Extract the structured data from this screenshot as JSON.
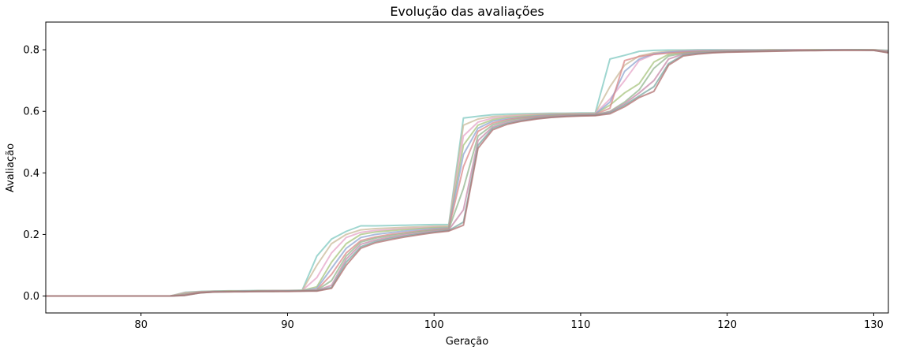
{
  "chart_data": {
    "type": "line",
    "title": "Evolução das avaliações",
    "xlabel": "Geração",
    "ylabel": "Avaliação",
    "xlim": [
      73.5,
      131
    ],
    "ylim": [
      -0.055,
      0.89
    ],
    "xticks": [
      80,
      90,
      100,
      110,
      120,
      130
    ],
    "yticks": [
      0.0,
      0.2,
      0.4,
      0.6,
      0.8
    ],
    "xtick_labels": [
      "80",
      "90",
      "100",
      "110",
      "120",
      "130"
    ],
    "ytick_labels": [
      "0.0",
      "0.2",
      "0.4",
      "0.6",
      "0.8"
    ],
    "grid": false,
    "legend": "none",
    "x": [
      73,
      74,
      75,
      76,
      77,
      78,
      79,
      80,
      81,
      82,
      83,
      84,
      85,
      86,
      87,
      88,
      89,
      90,
      91,
      92,
      93,
      94,
      95,
      96,
      97,
      98,
      99,
      100,
      101,
      102,
      103,
      104,
      105,
      106,
      107,
      108,
      109,
      110,
      111,
      112,
      113,
      114,
      115,
      116,
      117,
      118,
      119,
      120,
      121,
      122,
      123,
      124,
      125,
      126,
      127,
      128,
      129,
      130,
      131
    ],
    "series": [
      {
        "color": "#7fc8c0",
        "values": [
          0,
          0,
          0,
          0,
          0,
          0,
          0,
          0,
          0,
          0,
          0.012,
          0.015,
          0.016,
          0.017,
          0.017,
          0.018,
          0.018,
          0.018,
          0.019,
          0.13,
          0.185,
          0.21,
          0.228,
          0.228,
          0.229,
          0.23,
          0.231,
          0.232,
          0.232,
          0.578,
          0.584,
          0.589,
          0.591,
          0.592,
          0.593,
          0.594,
          0.594,
          0.595,
          0.595,
          0.77,
          0.782,
          0.795,
          0.798,
          0.799,
          0.799,
          0.8,
          0.8,
          0.8,
          0.8,
          0.8,
          0.8,
          0.8,
          0.8,
          0.8,
          0.8,
          0.8,
          0.8,
          0.8,
          0.798
        ]
      },
      {
        "color": "#c9b99a",
        "values": [
          0,
          0,
          0,
          0,
          0,
          0,
          0,
          0,
          0,
          0,
          0.011,
          0.014,
          0.016,
          0.016,
          0.017,
          0.017,
          0.018,
          0.018,
          0.018,
          0.1,
          0.17,
          0.2,
          0.215,
          0.219,
          0.221,
          0.223,
          0.225,
          0.227,
          0.228,
          0.555,
          0.575,
          0.583,
          0.586,
          0.589,
          0.591,
          0.592,
          0.593,
          0.593,
          0.594,
          0.68,
          0.75,
          0.78,
          0.79,
          0.795,
          0.797,
          0.798,
          0.798,
          0.799,
          0.799,
          0.799,
          0.8,
          0.8,
          0.8,
          0.8,
          0.8,
          0.8,
          0.8,
          0.8,
          0.797
        ]
      },
      {
        "color": "#e5a5c8",
        "values": [
          0,
          0,
          0,
          0,
          0,
          0,
          0,
          0,
          0,
          0,
          0.01,
          0.014,
          0.015,
          0.016,
          0.016,
          0.017,
          0.017,
          0.017,
          0.018,
          0.06,
          0.14,
          0.19,
          0.207,
          0.213,
          0.216,
          0.219,
          0.221,
          0.224,
          0.225,
          0.52,
          0.565,
          0.578,
          0.583,
          0.586,
          0.589,
          0.591,
          0.592,
          0.592,
          0.593,
          0.64,
          0.7,
          0.765,
          0.785,
          0.792,
          0.795,
          0.797,
          0.798,
          0.798,
          0.799,
          0.799,
          0.799,
          0.8,
          0.8,
          0.8,
          0.8,
          0.8,
          0.8,
          0.8,
          0.796
        ]
      },
      {
        "color": "#a7c47e",
        "values": [
          0,
          0,
          0,
          0,
          0,
          0,
          0,
          0,
          0,
          0,
          0.008,
          0.013,
          0.015,
          0.016,
          0.016,
          0.017,
          0.017,
          0.017,
          0.018,
          0.03,
          0.11,
          0.17,
          0.2,
          0.208,
          0.212,
          0.216,
          0.219,
          0.222,
          0.224,
          0.49,
          0.555,
          0.573,
          0.58,
          0.584,
          0.587,
          0.59,
          0.591,
          0.591,
          0.592,
          0.62,
          0.66,
          0.69,
          0.76,
          0.785,
          0.791,
          0.795,
          0.797,
          0.797,
          0.798,
          0.798,
          0.799,
          0.799,
          0.799,
          0.8,
          0.8,
          0.8,
          0.8,
          0.8,
          0.795
        ]
      },
      {
        "color": "#8fa6d0",
        "values": [
          0,
          0,
          0,
          0,
          0,
          0,
          0,
          0,
          0,
          0,
          0.006,
          0.012,
          0.015,
          0.015,
          0.016,
          0.016,
          0.017,
          0.017,
          0.017,
          0.025,
          0.09,
          0.155,
          0.19,
          0.2,
          0.206,
          0.211,
          0.215,
          0.219,
          0.221,
          0.46,
          0.545,
          0.568,
          0.576,
          0.581,
          0.585,
          0.588,
          0.589,
          0.59,
          0.591,
          0.63,
          0.73,
          0.77,
          0.787,
          0.792,
          0.795,
          0.796,
          0.797,
          0.797,
          0.798,
          0.798,
          0.798,
          0.799,
          0.799,
          0.799,
          0.8,
          0.8,
          0.8,
          0.799,
          0.795
        ]
      },
      {
        "color": "#d98a8a",
        "values": [
          0,
          0,
          0,
          0,
          0,
          0,
          0,
          0,
          0,
          0,
          0.005,
          0.012,
          0.014,
          0.015,
          0.015,
          0.016,
          0.016,
          0.017,
          0.017,
          0.02,
          0.07,
          0.14,
          0.18,
          0.192,
          0.2,
          0.206,
          0.211,
          0.216,
          0.219,
          0.42,
          0.535,
          0.562,
          0.573,
          0.579,
          0.583,
          0.586,
          0.588,
          0.589,
          0.59,
          0.61,
          0.765,
          0.778,
          0.785,
          0.789,
          0.792,
          0.794,
          0.795,
          0.796,
          0.797,
          0.797,
          0.798,
          0.798,
          0.799,
          0.799,
          0.799,
          0.8,
          0.8,
          0.799,
          0.794
        ]
      },
      {
        "color": "#93b58f",
        "values": [
          0,
          0,
          0,
          0,
          0,
          0,
          0,
          0,
          0,
          0,
          0.004,
          0.011,
          0.014,
          0.015,
          0.015,
          0.016,
          0.016,
          0.016,
          0.017,
          0.019,
          0.05,
          0.13,
          0.175,
          0.188,
          0.196,
          0.203,
          0.209,
          0.214,
          0.217,
          0.35,
          0.52,
          0.556,
          0.569,
          0.576,
          0.581,
          0.585,
          0.587,
          0.588,
          0.589,
          0.6,
          0.63,
          0.67,
          0.74,
          0.78,
          0.788,
          0.792,
          0.794,
          0.795,
          0.796,
          0.797,
          0.797,
          0.798,
          0.798,
          0.799,
          0.799,
          0.799,
          0.8,
          0.799,
          0.793
        ]
      },
      {
        "color": "#c58aa8",
        "values": [
          0,
          0,
          0,
          0,
          0,
          0,
          0,
          0,
          0,
          0,
          0.003,
          0.011,
          0.014,
          0.014,
          0.015,
          0.015,
          0.016,
          0.016,
          0.016,
          0.018,
          0.035,
          0.12,
          0.168,
          0.182,
          0.191,
          0.199,
          0.205,
          0.211,
          0.215,
          0.28,
          0.505,
          0.55,
          0.565,
          0.573,
          0.579,
          0.583,
          0.586,
          0.587,
          0.588,
          0.598,
          0.625,
          0.66,
          0.7,
          0.77,
          0.786,
          0.79,
          0.792,
          0.794,
          0.795,
          0.796,
          0.797,
          0.797,
          0.798,
          0.798,
          0.799,
          0.799,
          0.799,
          0.799,
          0.792
        ]
      },
      {
        "color": "#7aa7a0",
        "values": [
          0,
          0,
          0,
          0,
          0,
          0,
          0,
          0,
          0,
          0,
          0.002,
          0.01,
          0.013,
          0.014,
          0.015,
          0.015,
          0.015,
          0.016,
          0.016,
          0.017,
          0.028,
          0.11,
          0.16,
          0.177,
          0.187,
          0.195,
          0.202,
          0.208,
          0.213,
          0.24,
          0.49,
          0.545,
          0.561,
          0.57,
          0.577,
          0.581,
          0.584,
          0.586,
          0.587,
          0.595,
          0.62,
          0.65,
          0.68,
          0.755,
          0.783,
          0.788,
          0.791,
          0.793,
          0.794,
          0.795,
          0.796,
          0.797,
          0.797,
          0.798,
          0.798,
          0.799,
          0.799,
          0.798,
          0.791
        ]
      },
      {
        "color": "#b07070",
        "values": [
          0,
          0,
          0,
          0,
          0,
          0,
          0,
          0,
          0,
          0,
          0.002,
          0.01,
          0.013,
          0.014,
          0.014,
          0.015,
          0.015,
          0.015,
          0.016,
          0.016,
          0.025,
          0.1,
          0.155,
          0.173,
          0.183,
          0.192,
          0.199,
          0.206,
          0.211,
          0.23,
          0.48,
          0.54,
          0.558,
          0.568,
          0.575,
          0.58,
          0.583,
          0.585,
          0.586,
          0.592,
          0.615,
          0.645,
          0.665,
          0.75,
          0.78,
          0.786,
          0.79,
          0.792,
          0.793,
          0.794,
          0.795,
          0.796,
          0.797,
          0.797,
          0.798,
          0.798,
          0.798,
          0.798,
          0.79
        ]
      }
    ]
  }
}
